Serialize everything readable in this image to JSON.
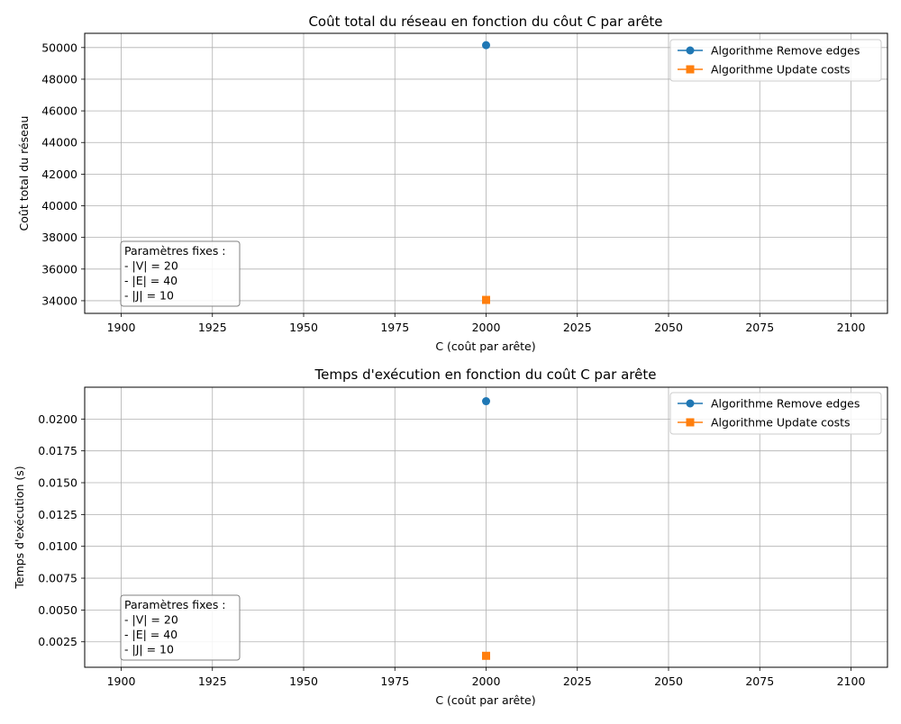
{
  "chart_data": [
    {
      "type": "line",
      "title": "Coût total du réseau en fonction du côut C par arête",
      "xlabel": "C (coût par arête)",
      "ylabel": "Coût total du réseau",
      "xlim": [
        1890,
        2110
      ],
      "ylim": [
        33200,
        50900
      ],
      "xticks": [
        1900,
        1925,
        1950,
        1975,
        2000,
        2025,
        2050,
        2075,
        2100
      ],
      "xtick_labels": [
        "1900",
        "1925",
        "1950",
        "1975",
        "2000",
        "2025",
        "2050",
        "2075",
        "2100"
      ],
      "yticks": [
        34000,
        36000,
        38000,
        40000,
        42000,
        44000,
        46000,
        48000,
        50000
      ],
      "ytick_labels": [
        "34000",
        "36000",
        "38000",
        "40000",
        "42000",
        "44000",
        "46000",
        "48000",
        "50000"
      ],
      "grid": true,
      "legend_position": "upper right",
      "series": [
        {
          "name": "Algorithme Remove edges",
          "color": "#1f77b4",
          "marker": "circle",
          "x": [
            2000
          ],
          "values": [
            50150
          ]
        },
        {
          "name": "Algorithme Update costs",
          "color": "#ff7f0e",
          "marker": "square",
          "x": [
            2000
          ],
          "values": [
            34050
          ]
        }
      ],
      "annotation": {
        "position": "lower left",
        "lines": [
          "Paramètres fixes :",
          "- |V| = 20",
          "- |E| = 40",
          "- |J| = 10"
        ]
      }
    },
    {
      "type": "line",
      "title": "Temps d'exécution en fonction du coût C par arête",
      "xlabel": "C (coût par arête)",
      "ylabel": "Temps d'exécution (s)",
      "xlim": [
        1890,
        2110
      ],
      "ylim": [
        0.0005,
        0.0225
      ],
      "xticks": [
        1900,
        1925,
        1950,
        1975,
        2000,
        2025,
        2050,
        2075,
        2100
      ],
      "xtick_labels": [
        "1900",
        "1925",
        "1950",
        "1975",
        "2000",
        "2025",
        "2050",
        "2075",
        "2100"
      ],
      "yticks": [
        0.0025,
        0.005,
        0.0075,
        0.01,
        0.0125,
        0.015,
        0.0175,
        0.02
      ],
      "ytick_labels": [
        "0.0025",
        "0.0050",
        "0.0075",
        "0.0100",
        "0.0125",
        "0.0150",
        "0.0175",
        "0.0200"
      ],
      "grid": true,
      "legend_position": "upper right",
      "series": [
        {
          "name": "Algorithme Remove edges",
          "color": "#1f77b4",
          "marker": "circle",
          "x": [
            2000
          ],
          "values": [
            0.0214
          ]
        },
        {
          "name": "Algorithme Update costs",
          "color": "#ff7f0e",
          "marker": "square",
          "x": [
            2000
          ],
          "values": [
            0.0014
          ]
        }
      ],
      "annotation": {
        "position": "lower left",
        "lines": [
          "Paramètres fixes :",
          "- |V| = 20",
          "- |E| = 40",
          "- |J| = 10"
        ]
      }
    }
  ]
}
